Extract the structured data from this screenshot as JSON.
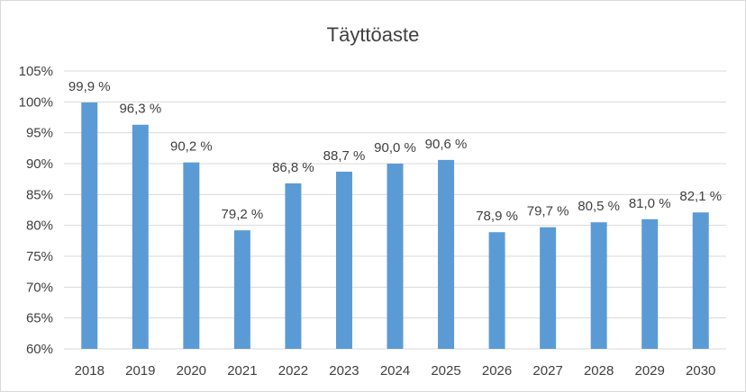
{
  "chart_data": {
    "type": "bar",
    "title": "Täyttöaste",
    "xlabel": "",
    "ylabel": "",
    "categories": [
      "2018",
      "2019",
      "2020",
      "2021",
      "2022",
      "2023",
      "2024",
      "2025",
      "2026",
      "2027",
      "2028",
      "2029",
      "2030"
    ],
    "values": [
      99.9,
      96.3,
      90.2,
      79.2,
      86.8,
      88.7,
      90.0,
      90.6,
      78.9,
      79.7,
      80.5,
      81.0,
      82.1
    ],
    "data_labels": [
      "99,9 %",
      "96,3 %",
      "90,2 %",
      "79,2 %",
      "86,8 %",
      "88,7 %",
      "90,0 %",
      "90,6 %",
      "78,9 %",
      "79,7 %",
      "80,5 %",
      "81,0 %",
      "82,1 %"
    ],
    "ylim": [
      60,
      105
    ],
    "y_ticks": [
      60,
      65,
      70,
      75,
      80,
      85,
      90,
      95,
      100,
      105
    ],
    "y_tick_labels": [
      "60%",
      "65%",
      "70%",
      "75%",
      "80%",
      "85%",
      "90%",
      "95%",
      "100%",
      "105%"
    ],
    "grid": true,
    "legend": "none",
    "bar_color": "#5b9bd5"
  }
}
